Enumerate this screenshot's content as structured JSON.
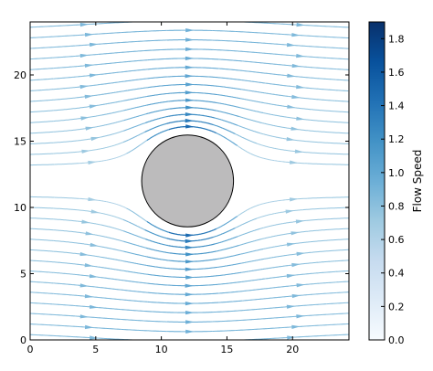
{
  "chart_data": {
    "type": "streamplot",
    "title": "",
    "xlabel": "",
    "ylabel": "",
    "xlim": [
      0,
      24.3
    ],
    "ylim": [
      0,
      24.0
    ],
    "x_ticks": [
      0,
      5,
      10,
      15,
      20
    ],
    "y_ticks": [
      0,
      5,
      10,
      15,
      20
    ],
    "obstacle": {
      "shape": "circle",
      "center": [
        12.0,
        12.0
      ],
      "radius": 3.5,
      "fill": "#bcbbbc",
      "stroke": "#000000"
    },
    "flow": {
      "direction": "left-to-right",
      "free_stream_speed": 0.85
    },
    "colorbar": {
      "label": "Flow Speed",
      "range": [
        0.0,
        1.9
      ],
      "ticks": [
        "0.0",
        "0.2",
        "0.4",
        "0.6",
        "0.8",
        "1.0",
        "1.2",
        "1.4",
        "1.6",
        "1.8"
      ],
      "colormap": "Blues",
      "colors": [
        "#f7fbff",
        "#deebf7",
        "#c6dbef",
        "#9ecae1",
        "#6baed6",
        "#4292c6",
        "#2171b5",
        "#08519c",
        "#08306b"
      ]
    }
  }
}
